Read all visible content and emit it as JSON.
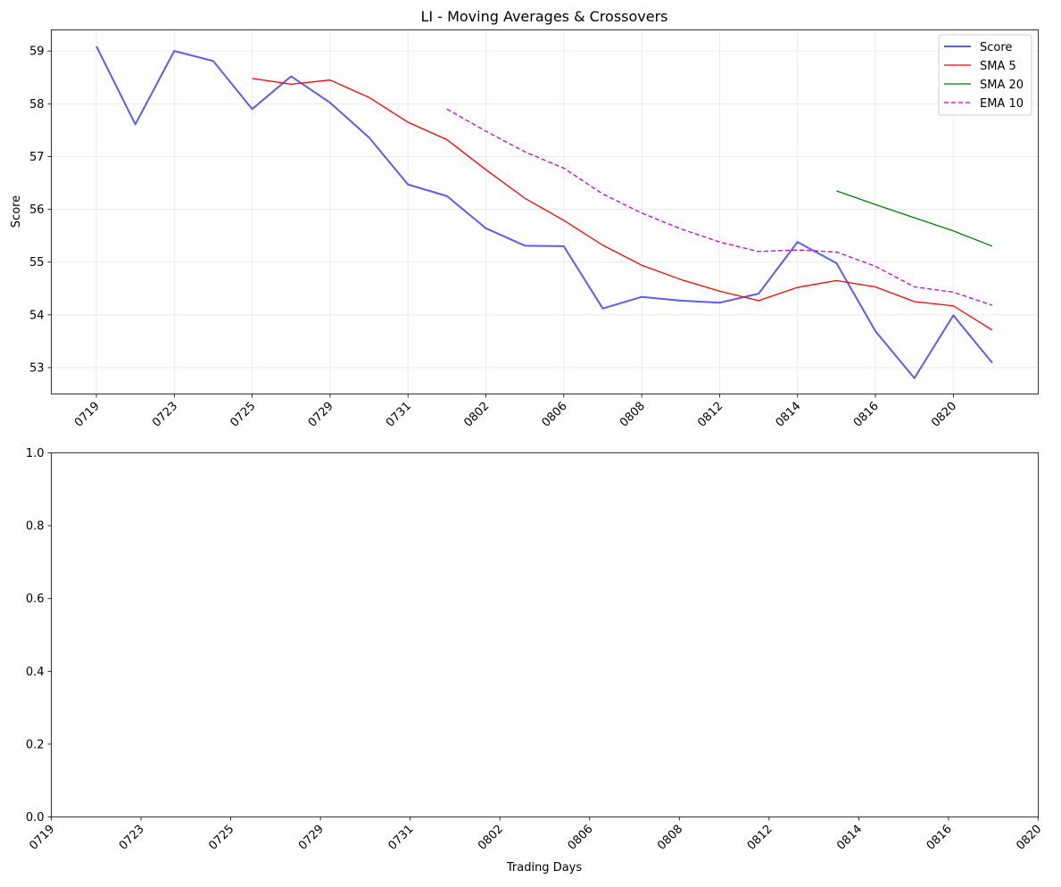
{
  "chart_data": [
    {
      "type": "line",
      "title": "LI - Moving Averages & Crossovers",
      "xlabel": "",
      "ylabel": "Score",
      "ylim": [
        52.5,
        59.4
      ],
      "yticks": [
        53,
        54,
        55,
        56,
        57,
        58,
        59
      ],
      "xtick_labels": [
        "0719",
        "0723",
        "0725",
        "0729",
        "0731",
        "0802",
        "0806",
        "0808",
        "0812",
        "0814",
        "0816",
        "0820"
      ],
      "grid": true,
      "legend_position": "top-right",
      "series": [
        {
          "name": "Score",
          "color": "#3333ee",
          "style": "solid",
          "values": [
            59.09,
            57.61,
            59.0,
            58.81,
            57.9,
            58.52,
            58.02,
            57.36,
            56.47,
            56.25,
            55.64,
            55.31,
            55.3,
            54.12,
            54.34,
            54.27,
            54.23,
            54.4,
            55.38,
            54.98,
            53.69,
            52.8,
            53.99,
            53.09
          ]
        },
        {
          "name": "SMA 5",
          "color": "#ff0000",
          "style": "solid",
          "values": [
            null,
            null,
            null,
            null,
            58.48,
            58.37,
            58.45,
            58.12,
            57.65,
            57.32,
            56.75,
            56.21,
            55.79,
            55.32,
            54.94,
            54.67,
            54.45,
            54.27,
            54.52,
            54.65,
            54.53,
            54.25,
            54.17,
            53.71
          ]
        },
        {
          "name": "SMA 20",
          "color": "#008000",
          "style": "solid",
          "values": [
            null,
            null,
            null,
            null,
            null,
            null,
            null,
            null,
            null,
            null,
            null,
            null,
            null,
            null,
            null,
            null,
            null,
            null,
            null,
            56.35,
            56.09,
            55.84,
            55.59,
            55.3
          ]
        },
        {
          "name": "EMA 10",
          "color": "#cc00cc",
          "style": "dashed",
          "values": [
            null,
            null,
            null,
            null,
            null,
            null,
            null,
            null,
            null,
            57.9,
            57.48,
            57.09,
            56.78,
            56.29,
            55.93,
            55.63,
            55.38,
            55.2,
            55.23,
            55.19,
            54.92,
            54.53,
            54.43,
            54.18
          ]
        }
      ]
    },
    {
      "type": "line",
      "title": "",
      "xlabel": "Trading Days",
      "ylabel": "",
      "ylim": [
        0.0,
        1.0
      ],
      "ytick_labels": [
        "0.0",
        "0.2",
        "0.4",
        "0.6",
        "0.8",
        "1.0"
      ],
      "xtick_labels": [
        "0719",
        "0723",
        "0725",
        "0729",
        "0731",
        "0802",
        "0806",
        "0808",
        "0812",
        "0814",
        "0816",
        "0820"
      ],
      "grid": false,
      "series": []
    }
  ]
}
